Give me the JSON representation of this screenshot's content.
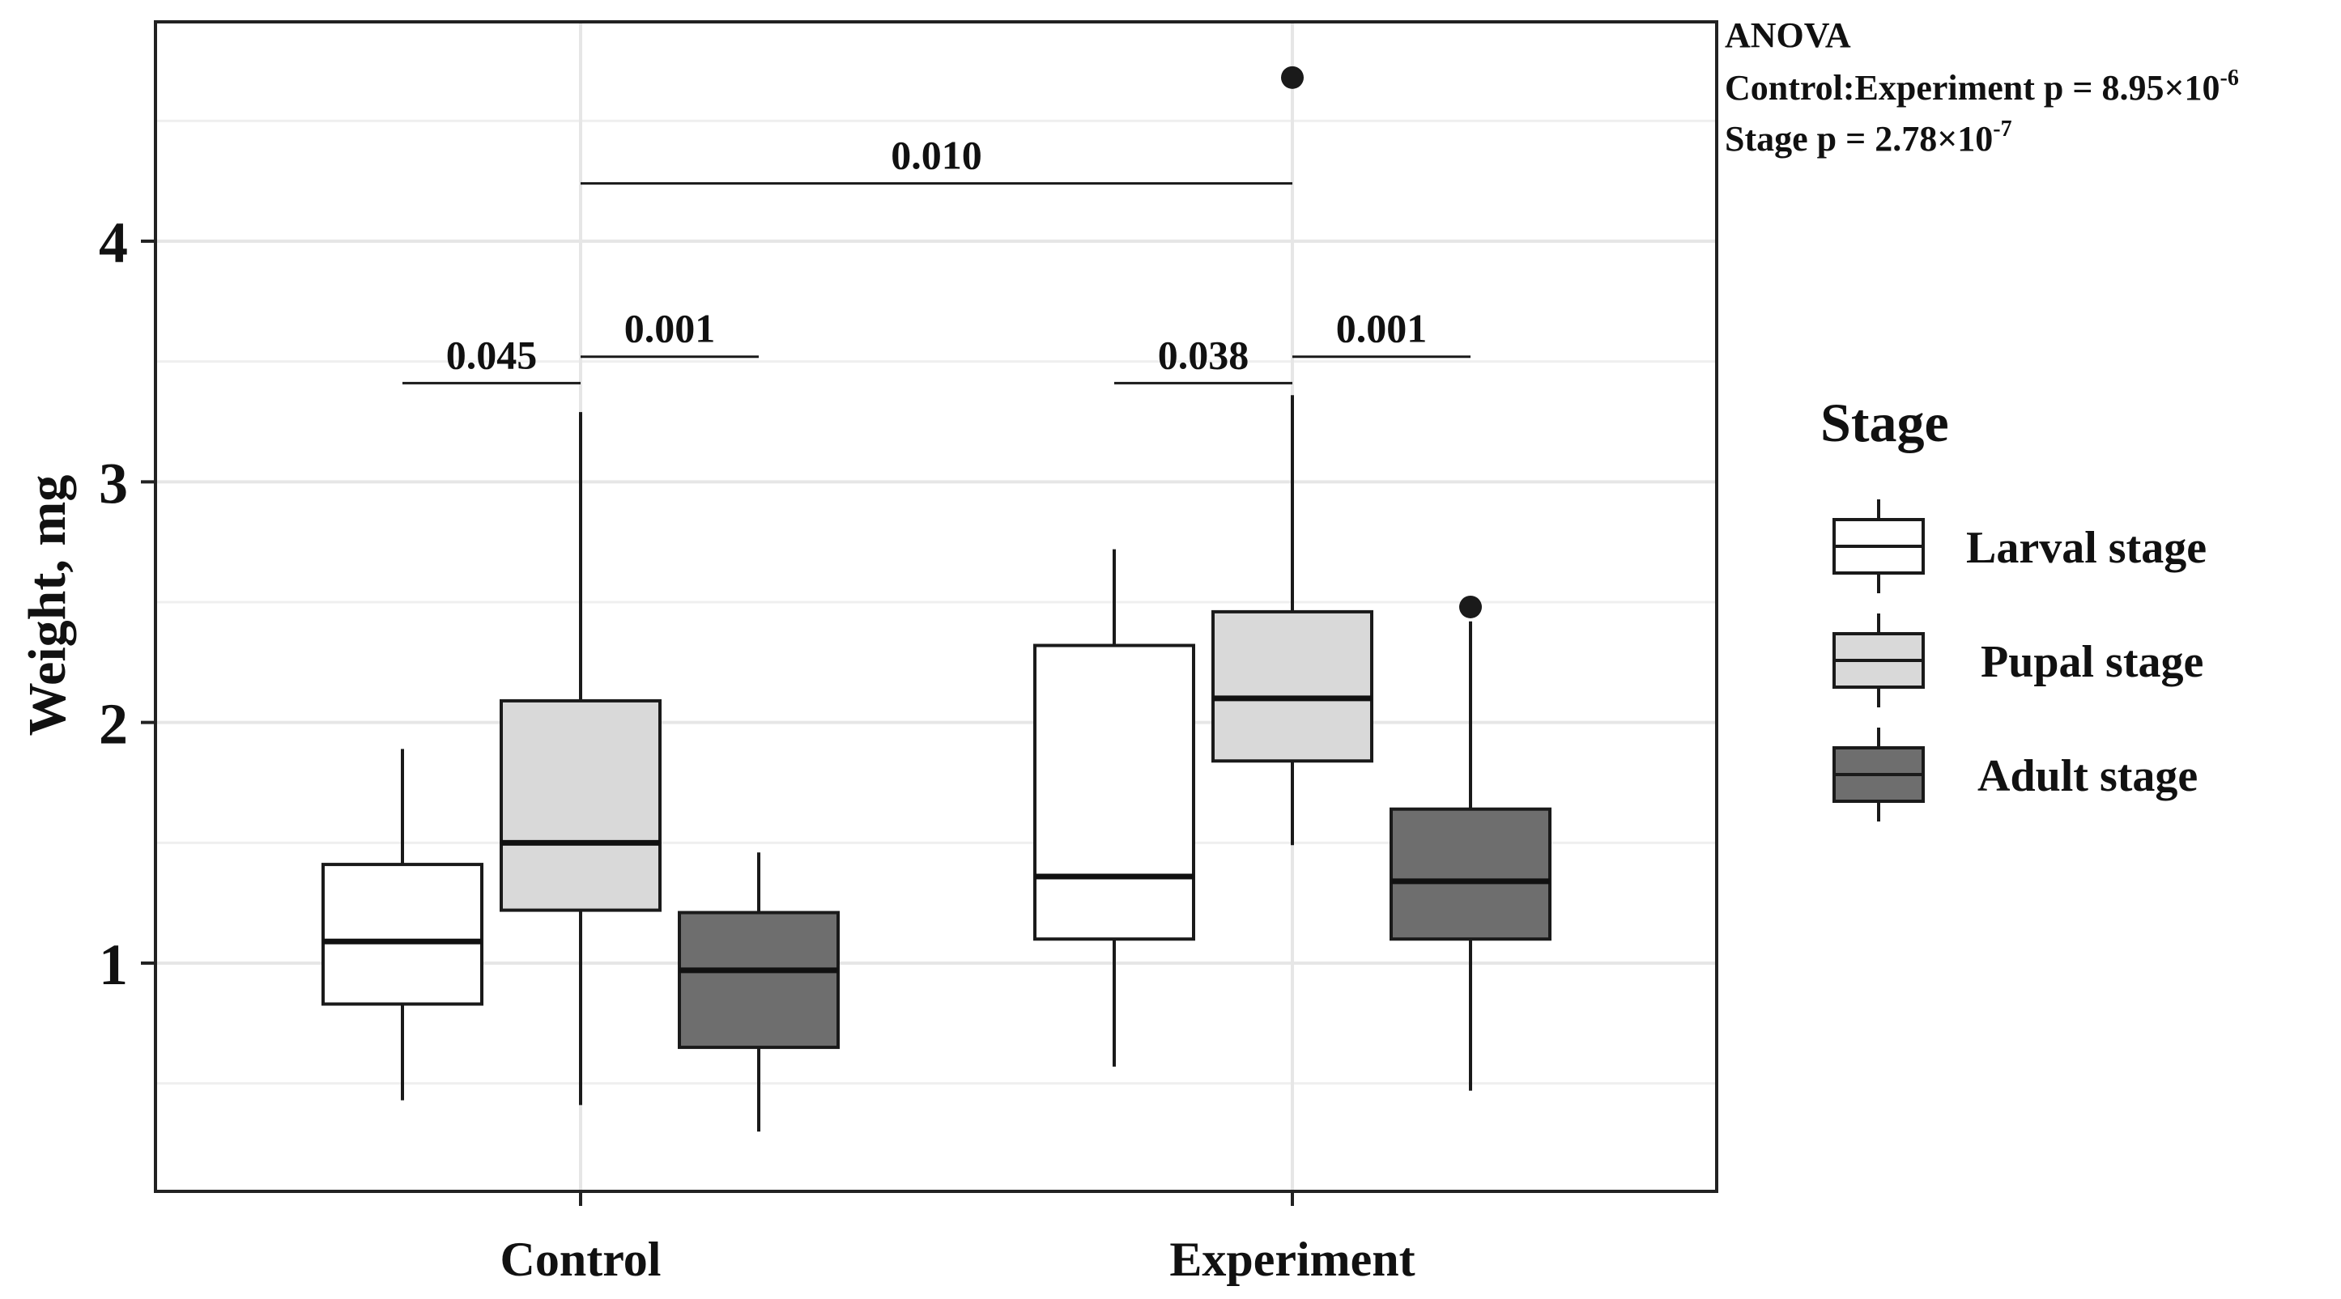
{
  "chart_data": {
    "type": "boxplot",
    "ylabel": "Weight, mg",
    "xlabel": "",
    "ylim": [
      0.0,
      4.85
    ],
    "yticks": [
      1,
      2,
      3,
      4
    ],
    "grid": true,
    "categories": [
      "Control",
      "Experiment"
    ],
    "legend": {
      "title": "Stage",
      "position": "right",
      "entries": [
        {
          "label": "Larval stage",
          "color": "#ffffff"
        },
        {
          "label": "Pupal stage",
          "color": "#d9d9d9"
        },
        {
          "label": "Adult stage",
          "color": "#6e6e6e"
        }
      ]
    },
    "series": [
      {
        "name": "Larval stage",
        "color": "#ffffff",
        "boxes": [
          {
            "category": "Control",
            "whisker_low": 0.43,
            "q1": 0.83,
            "median": 1.09,
            "q3": 1.41,
            "whisker_high": 1.89,
            "outliers": []
          },
          {
            "category": "Experiment",
            "whisker_low": 0.57,
            "q1": 1.1,
            "median": 1.36,
            "q3": 2.32,
            "whisker_high": 2.72,
            "outliers": []
          }
        ]
      },
      {
        "name": "Pupal stage",
        "color": "#d9d9d9",
        "boxes": [
          {
            "category": "Control",
            "whisker_low": 0.41,
            "q1": 1.22,
            "median": 1.5,
            "q3": 2.09,
            "whisker_high": 3.29,
            "outliers": []
          },
          {
            "category": "Experiment",
            "whisker_low": 1.49,
            "q1": 1.84,
            "median": 2.1,
            "q3": 2.46,
            "whisker_high": 3.36,
            "outliers": [
              4.68
            ]
          }
        ]
      },
      {
        "name": "Adult stage",
        "color": "#6e6e6e",
        "boxes": [
          {
            "category": "Control",
            "whisker_low": 0.3,
            "q1": 0.65,
            "median": 0.97,
            "q3": 1.21,
            "whisker_high": 1.46,
            "outliers": []
          },
          {
            "category": "Experiment",
            "whisker_low": 0.47,
            "q1": 1.1,
            "median": 1.34,
            "q3": 1.64,
            "whisker_high": 2.42,
            "outliers": [
              2.48
            ]
          }
        ]
      }
    ],
    "significance": [
      {
        "label": "0.010",
        "from": {
          "category": "Control",
          "series": "Pupal stage"
        },
        "to": {
          "category": "Experiment",
          "series": "Pupal stage"
        },
        "y": 4.24
      },
      {
        "label": "0.045",
        "from": {
          "category": "Control",
          "series": "Larval stage"
        },
        "to": {
          "category": "Control",
          "series": "Pupal stage"
        },
        "y": 3.41
      },
      {
        "label": "0.001",
        "from": {
          "category": "Control",
          "series": "Pupal stage"
        },
        "to": {
          "category": "Control",
          "series": "Adult stage"
        },
        "y": 3.52
      },
      {
        "label": "0.038",
        "from": {
          "category": "Experiment",
          "series": "Larval stage"
        },
        "to": {
          "category": "Experiment",
          "series": "Pupal stage"
        },
        "y": 3.41
      },
      {
        "label": "0.001",
        "from": {
          "category": "Experiment",
          "series": "Pupal stage"
        },
        "to": {
          "category": "Experiment",
          "series": "Adult stage"
        },
        "y": 3.52
      }
    ],
    "annotation": {
      "lines": [
        {
          "text": "ANOVA"
        },
        {
          "text": "Control:Experiment p = 8.95×10",
          "sup": "-6"
        },
        {
          "text": "Stage p = 2.78×10",
          "sup": "-7"
        }
      ]
    }
  }
}
